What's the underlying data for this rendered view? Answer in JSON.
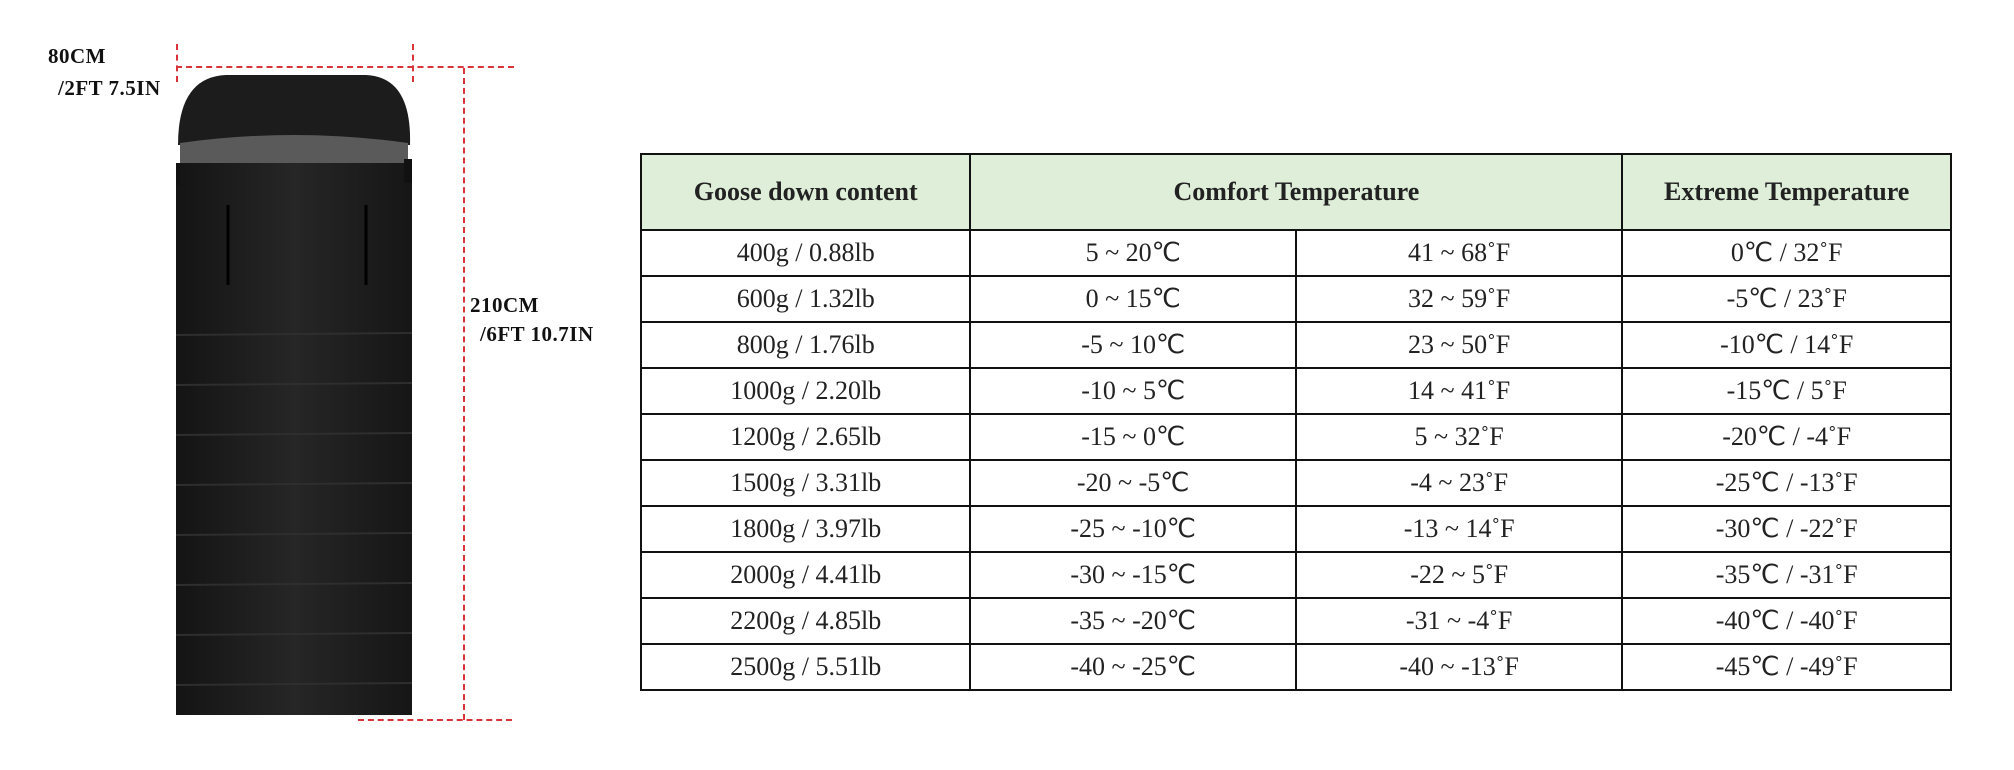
{
  "dimensions": {
    "width_cm": "80CM",
    "width_imperial": "/2FT 7.5IN",
    "length_cm": "210CM",
    "length_imperial": "/6FT 10.7IN",
    "line_color": "#d8343a"
  },
  "table": {
    "header_bg": "#deeed8",
    "headers": [
      "Goose down content",
      "Comfort Temperature",
      "Extreme Temperature"
    ],
    "rows": [
      [
        "400g / 0.88lb",
        "5 ~ 20℃",
        "41 ~ 68˚F",
        "0℃ / 32˚F"
      ],
      [
        "600g / 1.32lb",
        "0 ~ 15℃",
        "32 ~ 59˚F",
        "-5℃ / 23˚F"
      ],
      [
        "800g / 1.76lb",
        "-5 ~ 10℃",
        "23 ~ 50˚F",
        "-10℃ / 14˚F"
      ],
      [
        "1000g / 2.20lb",
        "-10 ~ 5℃",
        "14 ~ 41˚F",
        "-15℃ / 5˚F"
      ],
      [
        "1200g / 2.65lb",
        "-15 ~ 0℃",
        "5 ~ 32˚F",
        "-20℃ / -4˚F"
      ],
      [
        "1500g / 3.31lb",
        "-20 ~ -5℃",
        "-4 ~ 23˚F",
        "-25℃ / -13˚F"
      ],
      [
        "1800g / 3.97lb",
        "-25 ~ -10℃",
        "-13 ~ 14˚F",
        "-30℃ / -22˚F"
      ],
      [
        "2000g / 4.41lb",
        "-30 ~ -15℃",
        "-22 ~ 5˚F",
        "-35℃ / -31˚F"
      ],
      [
        "2200g / 4.85lb",
        "-35 ~ -20℃",
        "-31 ~ -4˚F",
        "-40℃ / -40˚F"
      ],
      [
        "2500g / 5.51lb",
        "-40 ~ -25℃",
        "-40 ~ -13˚F",
        "-45℃ / -49˚F"
      ]
    ]
  }
}
